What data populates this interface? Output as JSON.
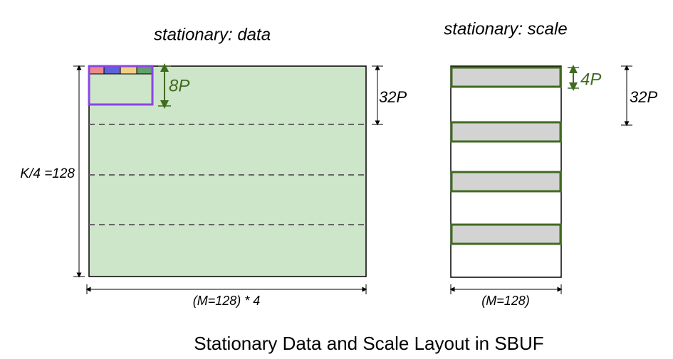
{
  "caption": "Stationary Data and Scale Layout in SBUF",
  "data_panel": {
    "title": "stationary: data",
    "block_label": "8P",
    "stride_label": "32P",
    "height_label": "K/4 =128",
    "width_label": "(M=128) * 4"
  },
  "scale_panel": {
    "title": "stationary: scale",
    "block_label": "4P",
    "stride_label": "32P",
    "width_label": "(M=128)"
  }
}
